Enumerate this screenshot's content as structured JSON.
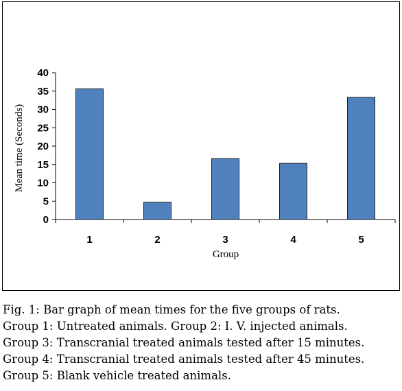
{
  "chart_data": {
    "type": "bar",
    "title": "",
    "xlabel": "Group",
    "ylabel": "Mean time (Seconds)",
    "categories": [
      "1",
      "2",
      "3",
      "4",
      "5"
    ],
    "values": [
      35.6,
      4.7,
      16.6,
      15.3,
      33.3
    ],
    "ylim": [
      0,
      40
    ],
    "yticks": [
      "0",
      "5",
      "10",
      "15",
      "20",
      "25",
      "30",
      "35",
      "40"
    ],
    "grid": false,
    "legend": "none",
    "bar_color": "#4f81bd"
  },
  "caption": {
    "lines": [
      "Fig. 1: Bar graph of mean times for the five groups of rats.",
      "Group 1: Untreated animals. Group 2: I. V. injected animals.",
      "Group 3: Transcranial treated animals tested after 15 minutes.",
      "Group 4: Transcranial treated animals tested after 45 minutes.",
      "Group 5: Blank vehicle treated animals."
    ]
  }
}
